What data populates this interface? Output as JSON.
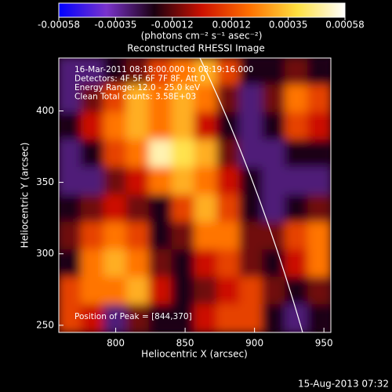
{
  "chart_data": {
    "type": "heatmap",
    "title": "Reconstructed RHESSI Image",
    "colorbar_label": "(photons cm⁻² s⁻¹ asec⁻²)",
    "colorbar_lim": [
      -0.00058,
      0.00058
    ],
    "colorbar_ticks": [
      -0.00058,
      -0.00035,
      -0.00012,
      0.00012,
      0.00035,
      0.00058
    ],
    "colormap": [
      "#0000ff",
      "#7a33cc",
      "#1a0010",
      "#cc1100",
      "#ff7000",
      "#ffe040",
      "#ffffff"
    ],
    "xlabel": "Heliocentric X (arcsec)",
    "ylabel": "Heliocentric Y (arcsec)",
    "xlim": [
      759,
      955
    ],
    "ylim": [
      245,
      437
    ],
    "xticks": [
      800,
      850,
      900,
      950
    ],
    "yticks": [
      250,
      300,
      350,
      400
    ],
    "z": [
      [
        -0.0003,
        -0.0003,
        -0.0002,
        -0.0001,
        0.0001,
        0.0002,
        0.0003,
        0.0001,
        -0.0002,
        -0.0002,
        -0.0001,
        -0.0002
      ],
      [
        -0.0003,
        -0.0001,
        0.0001,
        0.0003,
        0.0002,
        0.0003,
        0.0002,
        -0.0001,
        -0.0003,
        -0.0001,
        0.0002,
        0.0001
      ],
      [
        -0.0002,
        0,
        0.0002,
        0.0003,
        0.0002,
        0.0003,
        0,
        -0.0002,
        -0.0003,
        -0.0002,
        0.0001,
        0
      ],
      [
        -0.0003,
        -0.0002,
        0.0001,
        0.0002,
        0.0005,
        0.0004,
        0.0003,
        -0.0001,
        -0.0003,
        -0.0003,
        -0.0002,
        -0.0002
      ],
      [
        -0.0003,
        -0.0003,
        -0.0001,
        0,
        0.0002,
        0.0003,
        0.0002,
        0,
        -0.0002,
        -0.0003,
        -0.0003,
        -0.0003
      ],
      [
        -0.0002,
        -0.0001,
        0,
        -0.0001,
        -0.0002,
        0.0001,
        0.0003,
        0.0001,
        -0.0002,
        -0.0003,
        -0.0002,
        -0.0001
      ],
      [
        -0.0001,
        0.0001,
        0.0002,
        0.0001,
        -0.0002,
        -0.0001,
        0.0002,
        0.0002,
        -0.0001,
        -0.0001,
        0.0001,
        0.0002
      ],
      [
        -0.0002,
        0.0002,
        0.0003,
        0.0002,
        -0.0001,
        -0.0002,
        0,
        0.0001,
        -0.0001,
        -0.0002,
        0,
        0.0002
      ],
      [
        0.0001,
        0.0002,
        0.0002,
        0.0003,
        0,
        -0.0002,
        -0.0001,
        0,
        0.0001,
        -0.0001,
        -0.0002,
        -0.0001
      ],
      [
        0.0001,
        0,
        -0.0003,
        -0.0001,
        -0.0002,
        -0.0002,
        0,
        0.0001,
        0.0001,
        -0.0002,
        -0.0003,
        -0.0002
      ]
    ],
    "annotations": [
      "16-Mar-2011 08:18:00.000 to 08:19:16.000",
      "Detectors: 4F 5F 6F 7F 8F, Att 0",
      "Energy Range: 12.0 - 25.0 keV",
      "Clean     Total counts: 3.58E+03"
    ],
    "peak_label": "Position of Peak = [844,370]",
    "timestamp": "15-Aug-2013 07:32"
  }
}
